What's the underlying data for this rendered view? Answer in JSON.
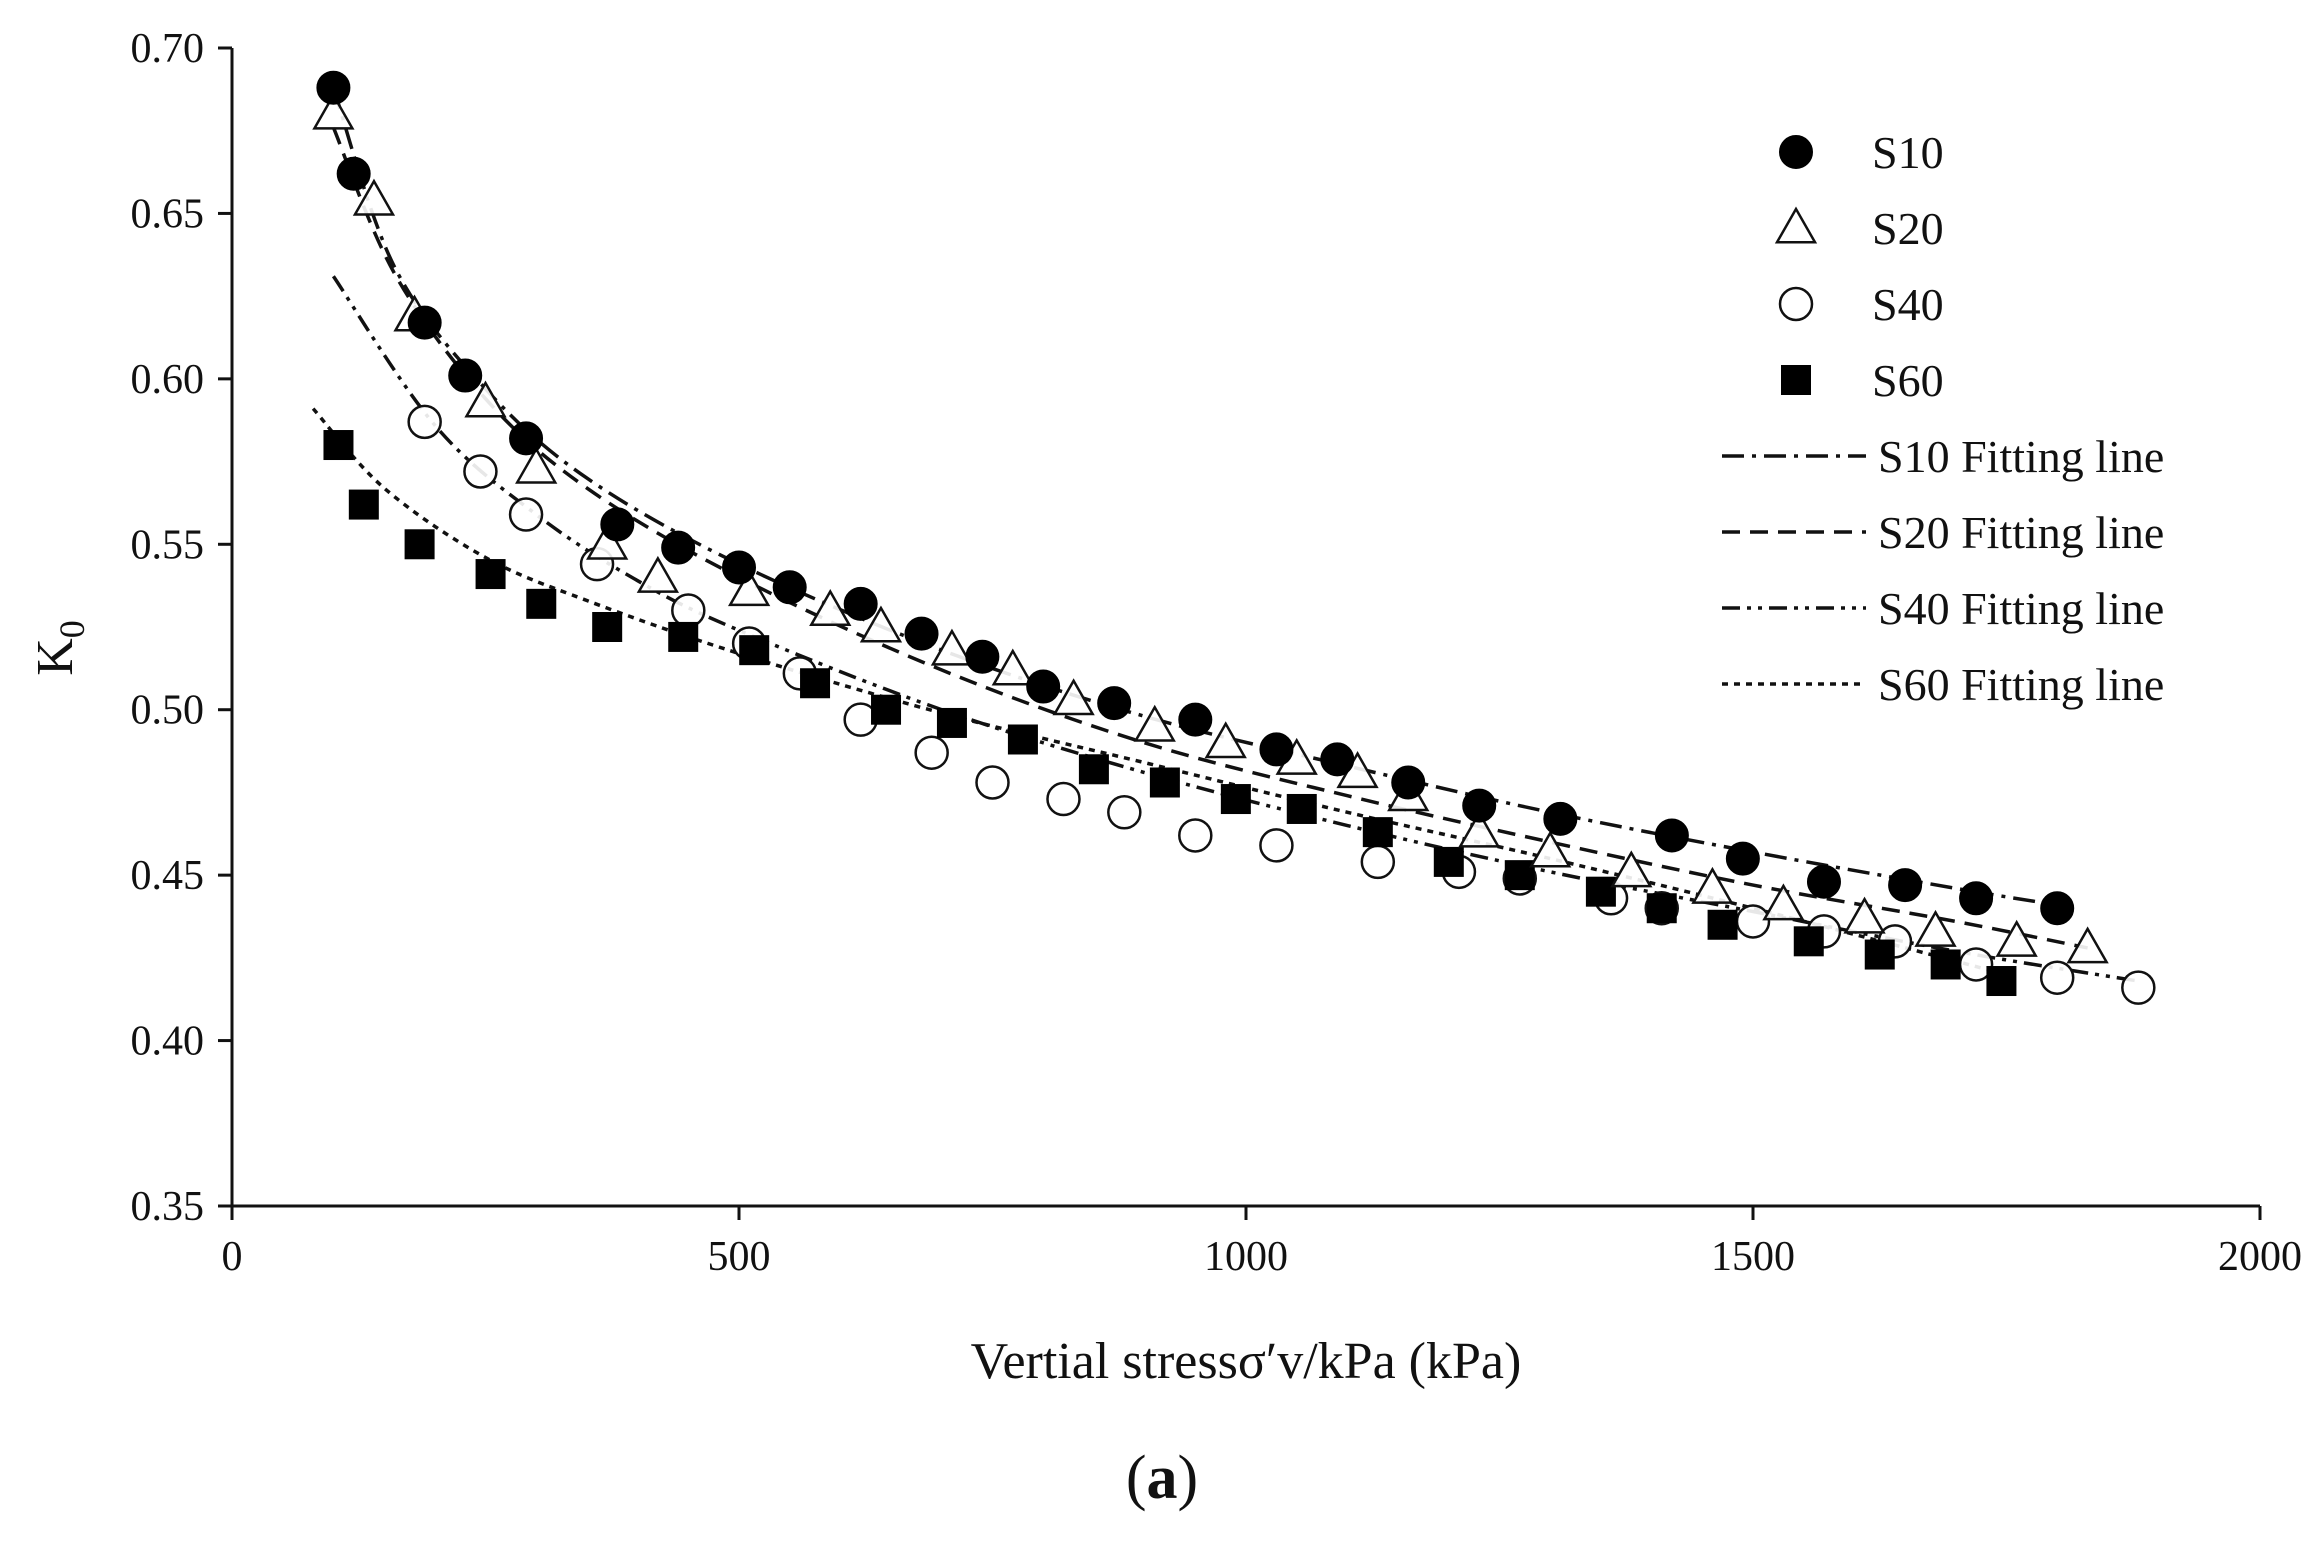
{
  "chart_data": {
    "type": "scatter",
    "title": "",
    "xlabel": "Vertial stressσ′v/kPa (kPa)",
    "ylabel": "K",
    "ylabel_subscript": "0",
    "xlim": [
      0,
      2000
    ],
    "ylim": [
      0.35,
      0.7
    ],
    "xticks": [
      0,
      500,
      1000,
      1500,
      2000
    ],
    "yticks": [
      0.35,
      0.4,
      0.45,
      0.5,
      0.55,
      0.6,
      0.65,
      0.7
    ],
    "grid": false,
    "legend_position": "top-right",
    "series": [
      {
        "name": "S10",
        "marker": "filled-circle",
        "x": [
          100,
          120,
          190,
          230,
          290,
          380,
          440,
          500,
          550,
          620,
          680,
          740,
          800,
          870,
          950,
          1030,
          1090,
          1160,
          1230,
          1310,
          1420,
          1490,
          1570,
          1650,
          1720,
          1800
        ],
        "y": [
          0.688,
          0.662,
          0.617,
          0.601,
          0.582,
          0.556,
          0.549,
          0.543,
          0.537,
          0.532,
          0.523,
          0.516,
          0.507,
          0.502,
          0.497,
          0.488,
          0.485,
          0.478,
          0.471,
          0.467,
          0.462,
          0.455,
          0.448,
          0.447,
          0.443,
          0.44
        ]
      },
      {
        "name": "S20",
        "marker": "open-triangle",
        "x": [
          100,
          140,
          180,
          250,
          300,
          370,
          420,
          510,
          590,
          640,
          710,
          770,
          830,
          910,
          980,
          1050,
          1110,
          1160,
          1230,
          1300,
          1380,
          1460,
          1530,
          1610,
          1680,
          1760,
          1830
        ],
        "y": [
          0.68,
          0.654,
          0.619,
          0.593,
          0.573,
          0.55,
          0.54,
          0.536,
          0.53,
          0.525,
          0.518,
          0.512,
          0.503,
          0.495,
          0.49,
          0.485,
          0.481,
          0.474,
          0.463,
          0.457,
          0.451,
          0.446,
          0.441,
          0.437,
          0.433,
          0.43,
          0.428
        ]
      },
      {
        "name": "S40",
        "marker": "open-circle",
        "x": [
          190,
          245,
          290,
          360,
          450,
          510,
          560,
          620,
          690,
          750,
          820,
          880,
          950,
          1030,
          1130,
          1210,
          1270,
          1360,
          1410,
          1500,
          1570,
          1640,
          1720,
          1800,
          1880
        ],
        "y": [
          0.587,
          0.572,
          0.559,
          0.544,
          0.53,
          0.52,
          0.511,
          0.497,
          0.487,
          0.478,
          0.473,
          0.469,
          0.462,
          0.459,
          0.454,
          0.451,
          0.449,
          0.443,
          0.44,
          0.436,
          0.433,
          0.43,
          0.423,
          0.419,
          0.416
        ]
      },
      {
        "name": "S60",
        "marker": "filled-square",
        "x": [
          105,
          130,
          185,
          255,
          305,
          370,
          445,
          515,
          575,
          645,
          710,
          780,
          850,
          920,
          990,
          1055,
          1130,
          1200,
          1270,
          1350,
          1410,
          1470,
          1555,
          1625,
          1690,
          1745
        ],
        "y": [
          0.58,
          0.562,
          0.55,
          0.541,
          0.532,
          0.525,
          0.522,
          0.518,
          0.508,
          0.5,
          0.496,
          0.491,
          0.482,
          0.478,
          0.473,
          0.47,
          0.463,
          0.454,
          0.45,
          0.445,
          0.44,
          0.435,
          0.43,
          0.426,
          0.423,
          0.418
        ]
      }
    ],
    "fitting_lines": [
      {
        "name": "S10 Fitting line",
        "dash": "dash-dot",
        "x": [
          100,
          160,
          250,
          350,
          500,
          700,
          900,
          1100,
          1300,
          1500,
          1700,
          1800
        ],
        "y": [
          0.688,
          0.634,
          0.597,
          0.57,
          0.544,
          0.518,
          0.498,
          0.483,
          0.469,
          0.457,
          0.446,
          0.441
        ]
      },
      {
        "name": "S20 Fitting line",
        "dash": "dashed",
        "x": [
          100,
          160,
          250,
          350,
          500,
          700,
          900,
          1100,
          1300,
          1500,
          1700,
          1830
        ],
        "y": [
          0.676,
          0.632,
          0.594,
          0.567,
          0.54,
          0.512,
          0.49,
          0.474,
          0.46,
          0.447,
          0.436,
          0.428
        ]
      },
      {
        "name": "S40 Fitting line",
        "dash": "dash-dot-dot",
        "x": [
          100,
          200,
          300,
          400,
          500,
          700,
          900,
          1100,
          1300,
          1500,
          1700,
          1880
        ],
        "y": [
          0.631,
          0.586,
          0.559,
          0.539,
          0.524,
          0.5,
          0.481,
          0.465,
          0.451,
          0.439,
          0.427,
          0.418
        ]
      },
      {
        "name": "S60 Fitting line",
        "dash": "dotted",
        "x": [
          80,
          150,
          250,
          350,
          500,
          700,
          900,
          1100,
          1300,
          1500,
          1700,
          1760
        ],
        "y": [
          0.591,
          0.567,
          0.546,
          0.533,
          0.517,
          0.499,
          0.484,
          0.469,
          0.455,
          0.44,
          0.424,
          0.419
        ]
      }
    ]
  },
  "legend": {
    "items": [
      "S10",
      "S20",
      "S40",
      "S60",
      "S10 Fitting line",
      "S20 Fitting line",
      "S40 Fitting line",
      "S60 Fitting line"
    ]
  },
  "caption": {
    "open": "(",
    "letter": "a",
    "close": ")"
  }
}
